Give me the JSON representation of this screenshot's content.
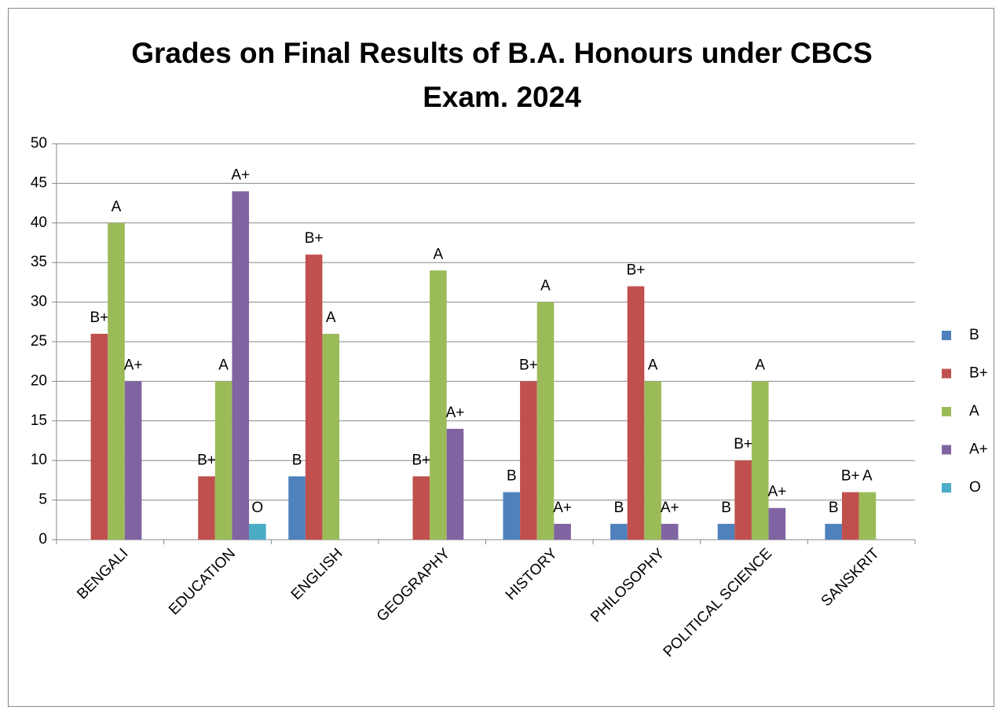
{
  "chart_data": {
    "type": "bar",
    "title": "Grades on Final Results of B.A. Honours under CBCS Exam. 2024",
    "categories": [
      "BENGALI",
      "EDUCATION",
      "ENGLISH",
      "GEOGRAPHY",
      "HISTORY",
      "PHILOSOPHY",
      "POLITICAL SCIENCE",
      "SANSKRIT"
    ],
    "series": [
      {
        "name": "B",
        "color": "#4f81bd",
        "values": [
          null,
          null,
          8,
          null,
          6,
          2,
          2,
          2
        ]
      },
      {
        "name": "B+",
        "color": "#c0504d",
        "values": [
          26,
          8,
          36,
          8,
          20,
          32,
          10,
          6
        ]
      },
      {
        "name": "A",
        "color": "#9bbb59",
        "values": [
          40,
          20,
          26,
          34,
          30,
          20,
          20,
          6
        ]
      },
      {
        "name": "A+",
        "color": "#8064a2",
        "values": [
          20,
          44,
          null,
          14,
          2,
          2,
          4,
          null
        ]
      },
      {
        "name": "O",
        "color": "#4bacc6",
        "values": [
          null,
          2,
          null,
          null,
          null,
          null,
          null,
          null
        ]
      }
    ],
    "ylim": [
      0,
      50
    ],
    "yticks": [
      0,
      5,
      10,
      15,
      20,
      25,
      30,
      35,
      40,
      45,
      50
    ],
    "grid": true,
    "legend": "right"
  }
}
